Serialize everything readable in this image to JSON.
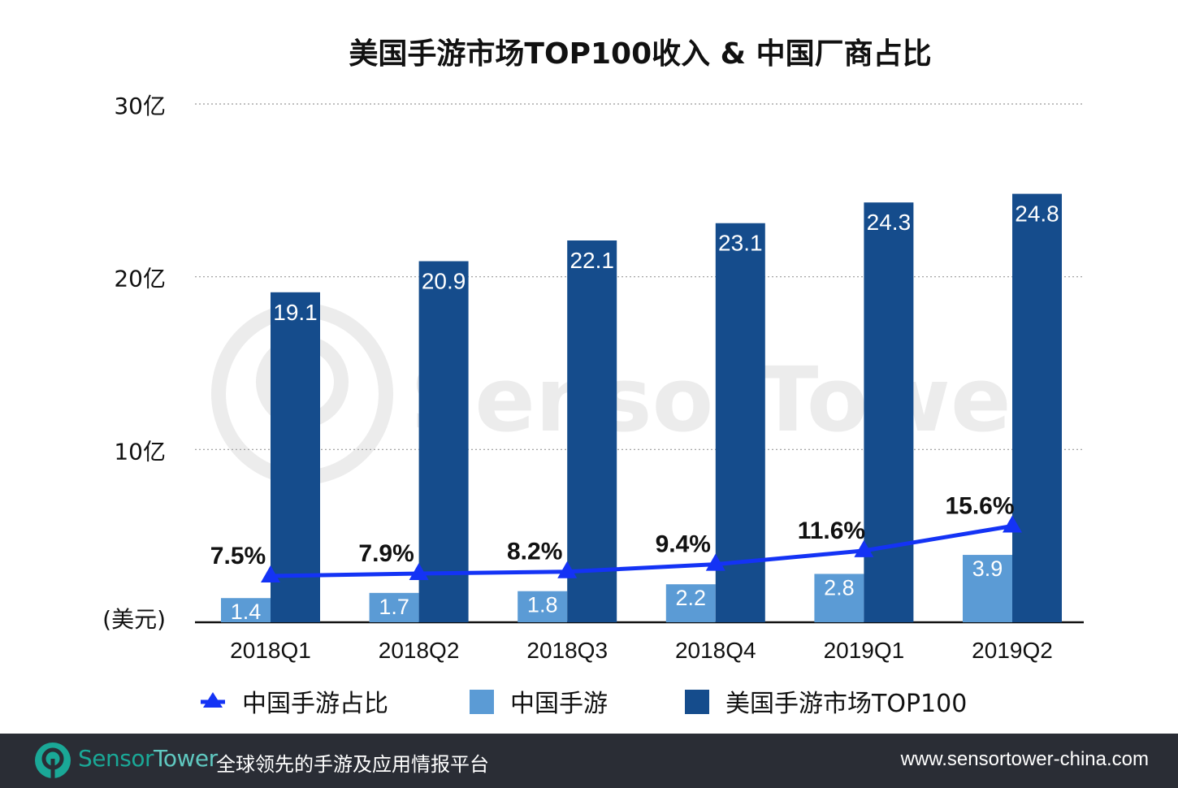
{
  "chart_data": {
    "type": "bar",
    "title": "美国手游市场TOP100收入 & 中国厂商占比",
    "ylabel": "(美元)",
    "yticks": [
      "30亿",
      "20亿",
      "10亿"
    ],
    "ylim": [
      0,
      30
    ],
    "y2lim": [
      0,
      84
    ],
    "grid": true,
    "legend_position": "bottom",
    "categories": [
      "2018Q1",
      "2018Q2",
      "2018Q3",
      "2018Q4",
      "2019Q1",
      "2019Q2"
    ],
    "series": [
      {
        "name": "中国手游",
        "type": "bar",
        "color": "#5b9bd5",
        "values": [
          1.4,
          1.7,
          1.8,
          2.2,
          2.8,
          3.9
        ]
      },
      {
        "name": "美国手游市场TOP100",
        "type": "bar",
        "color": "#154c8c",
        "values": [
          19.1,
          20.9,
          22.1,
          23.1,
          24.3,
          24.8
        ]
      },
      {
        "name": "中国手游占比",
        "type": "line",
        "color": "#1433f5",
        "values": [
          7.5,
          7.9,
          8.2,
          9.4,
          11.6,
          15.6
        ],
        "labels": [
          "7.5%",
          "7.9%",
          "8.2%",
          "9.4%",
          "11.6%",
          "15.6%"
        ]
      }
    ]
  },
  "watermark": "SensorTower",
  "footer": {
    "brand_a": "Sensor",
    "brand_b": "Tower",
    "slogan": "全球领先的手游及应用情报平台",
    "url": "www.sensortower-china.com"
  }
}
